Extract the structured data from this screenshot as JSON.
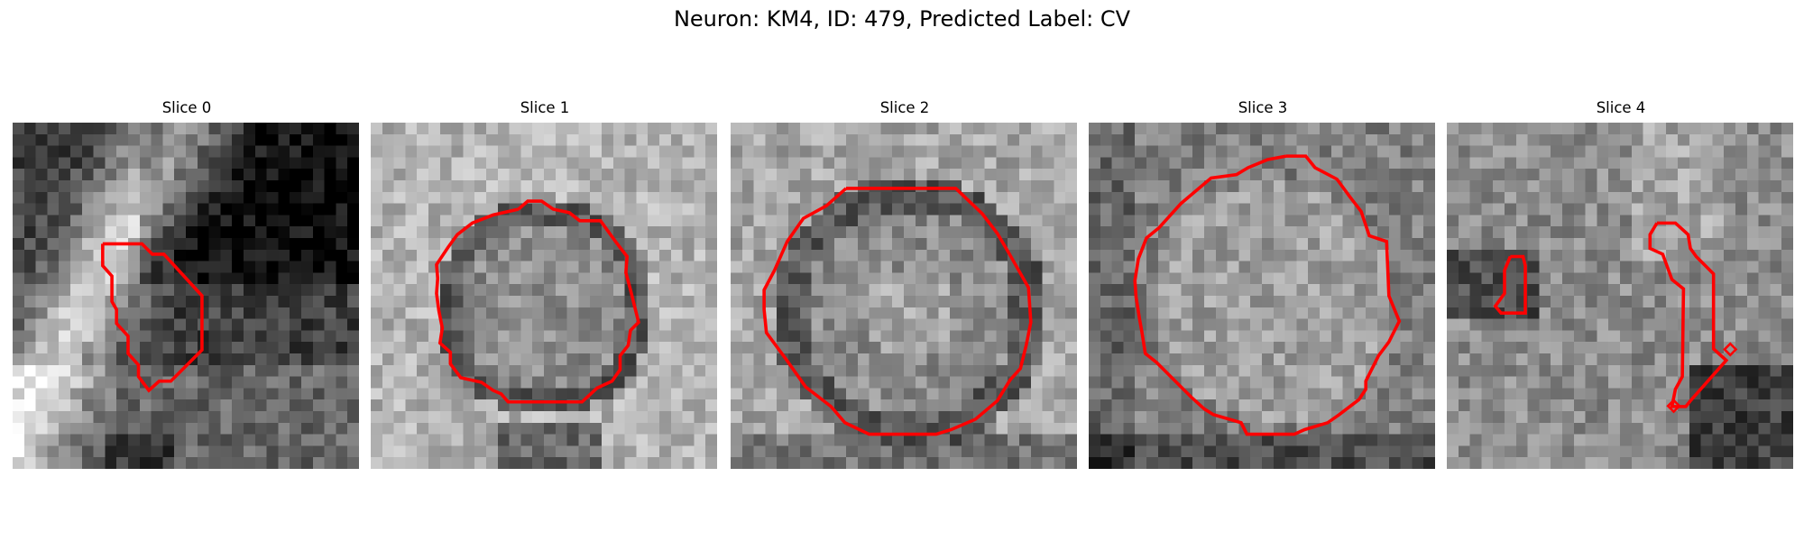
{
  "figure": {
    "title": "Neuron: KM4, ID: 479, Predicted Label: CV"
  },
  "panels": [
    {
      "title": "Slice 0"
    },
    {
      "title": "Slice 1"
    },
    {
      "title": "Slice 2"
    },
    {
      "title": "Slice 3"
    },
    {
      "title": "Slice 4"
    }
  ],
  "colors": {
    "contour": "#ff0000",
    "background": "#ffffff"
  }
}
